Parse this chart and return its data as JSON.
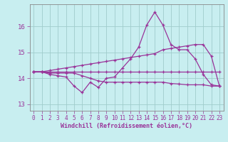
{
  "xlabel": "Windchill (Refroidissement éolien,°C)",
  "background_color": "#c8eef0",
  "grid_color": "#a0cccc",
  "line_color": "#993399",
  "spine_color": "#888888",
  "xlim": [
    -0.5,
    23.5
  ],
  "ylim": [
    12.75,
    16.85
  ],
  "yticks": [
    13,
    14,
    15,
    16
  ],
  "xticks": [
    0,
    1,
    2,
    3,
    4,
    5,
    6,
    7,
    8,
    9,
    10,
    11,
    12,
    13,
    14,
    15,
    16,
    17,
    18,
    19,
    20,
    21,
    22,
    23
  ],
  "series": {
    "line1_jagged": [
      14.25,
      14.25,
      14.15,
      14.1,
      14.05,
      13.7,
      13.45,
      13.85,
      13.65,
      14.0,
      14.05,
      14.4,
      14.75,
      15.2,
      16.05,
      16.55,
      16.05,
      15.3,
      15.1,
      15.1,
      14.75,
      14.15,
      13.75,
      13.7
    ],
    "line2_flat": [
      14.25,
      14.25,
      14.25,
      14.25,
      14.25,
      14.25,
      14.25,
      14.25,
      14.25,
      14.25,
      14.25,
      14.25,
      14.25,
      14.25,
      14.25,
      14.25,
      14.25,
      14.25,
      14.25,
      14.25,
      14.25,
      14.25,
      14.25,
      14.25
    ],
    "line3_rising": [
      14.25,
      14.25,
      14.3,
      14.35,
      14.4,
      14.45,
      14.5,
      14.55,
      14.6,
      14.65,
      14.7,
      14.75,
      14.8,
      14.85,
      14.9,
      14.95,
      15.1,
      15.15,
      15.2,
      15.25,
      15.3,
      15.3,
      14.85,
      13.7
    ],
    "line4_declining": [
      14.25,
      14.25,
      14.2,
      14.2,
      14.2,
      14.2,
      14.1,
      14.0,
      13.9,
      13.85,
      13.85,
      13.85,
      13.85,
      13.85,
      13.85,
      13.85,
      13.85,
      13.8,
      13.78,
      13.75,
      13.75,
      13.75,
      13.7,
      13.7
    ]
  }
}
